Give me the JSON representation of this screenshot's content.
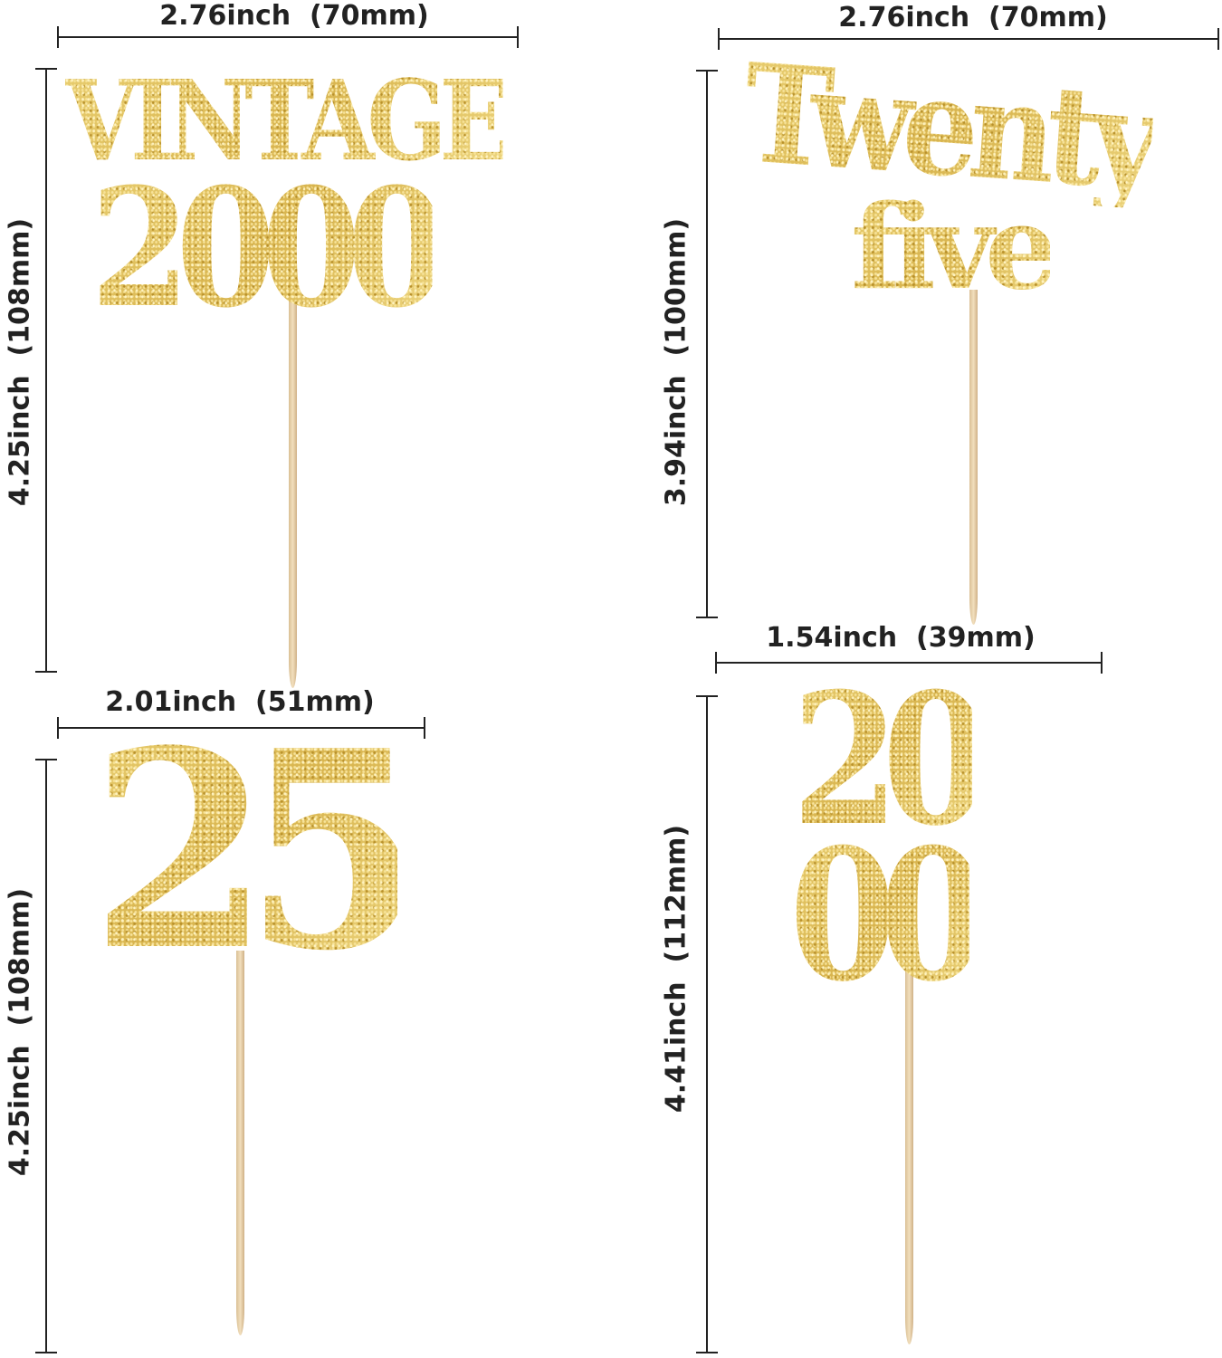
{
  "toppers": [
    {
      "text_lines": [
        "VINTAGE",
        "2000"
      ],
      "width_label": "2.76inch  (70mm)",
      "height_label": "4.25inch  (108mm)"
    },
    {
      "text_lines": [
        "Twenty",
        "five"
      ],
      "width_label": "2.76inch  (70mm)",
      "height_label": "3.94inch  (100mm)"
    },
    {
      "text_lines": [
        "25"
      ],
      "width_label": "2.01inch  (51mm)",
      "height_label": "4.25inch  (108mm)"
    },
    {
      "text_lines": [
        "20",
        "00"
      ],
      "width_label": "1.54inch  (39mm)",
      "height_label": "4.41inch  (112mm)"
    }
  ],
  "colors": {
    "glitter_gold": "#e3c55f",
    "stick": "#e6cfa8",
    "dimension_line": "#222222"
  }
}
